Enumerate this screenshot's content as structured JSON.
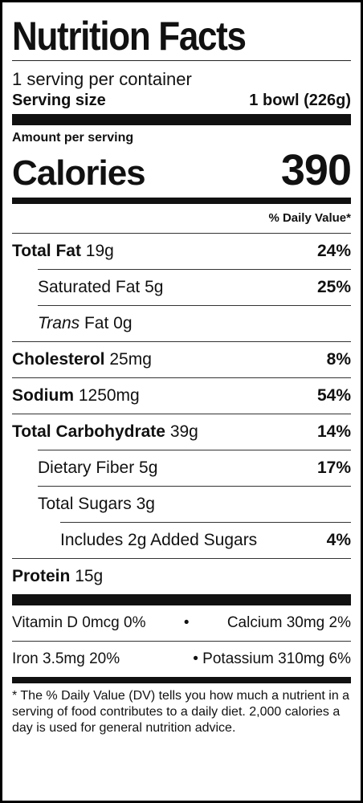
{
  "title": "Nutrition Facts",
  "servings_per_container": "1 serving per container",
  "serving_size_label": "Serving size",
  "serving_size_value": "1 bowl (226g)",
  "amount_per_serving": "Amount per serving",
  "calories_label": "Calories",
  "calories_value": "390",
  "daily_value_header": "% Daily Value*",
  "nutrients": {
    "total_fat": {
      "label": "Total Fat",
      "amount": "19g",
      "dv": "24%"
    },
    "saturated_fat": {
      "label": "Saturated Fat 5g",
      "dv": "25%"
    },
    "trans_fat": {
      "label_italic": "Trans",
      "label_rest": "Fat 0g"
    },
    "cholesterol": {
      "label": "Cholesterol",
      "amount": "25mg",
      "dv": "8%"
    },
    "sodium": {
      "label": "Sodium",
      "amount": "1250mg",
      "dv": "54%"
    },
    "total_carbohydrate": {
      "label": "Total Carbohydrate",
      "amount": "39g",
      "dv": "14%"
    },
    "dietary_fiber": {
      "label": "Dietary Fiber 5g",
      "dv": "17%"
    },
    "total_sugars": {
      "label": "Total Sugars 3g"
    },
    "added_sugars": {
      "label": "Includes 2g Added Sugars",
      "dv": "4%"
    },
    "protein": {
      "label": "Protein",
      "amount": "15g"
    }
  },
  "vitamins": {
    "vitamin_d": "Vitamin D 0mcg 0%",
    "calcium": "Calcium 30mg 2%",
    "iron": "Iron 3.5mg 20%",
    "potassium": "Potassium 310mg 6%",
    "bullet": "•"
  },
  "footnote": {
    "star": "*",
    "text": "The % Daily Value (DV) tells you how much a nutrient in a serving of food contributes to a daily diet. 2,000 calories a day is used for general nutrition advice."
  }
}
